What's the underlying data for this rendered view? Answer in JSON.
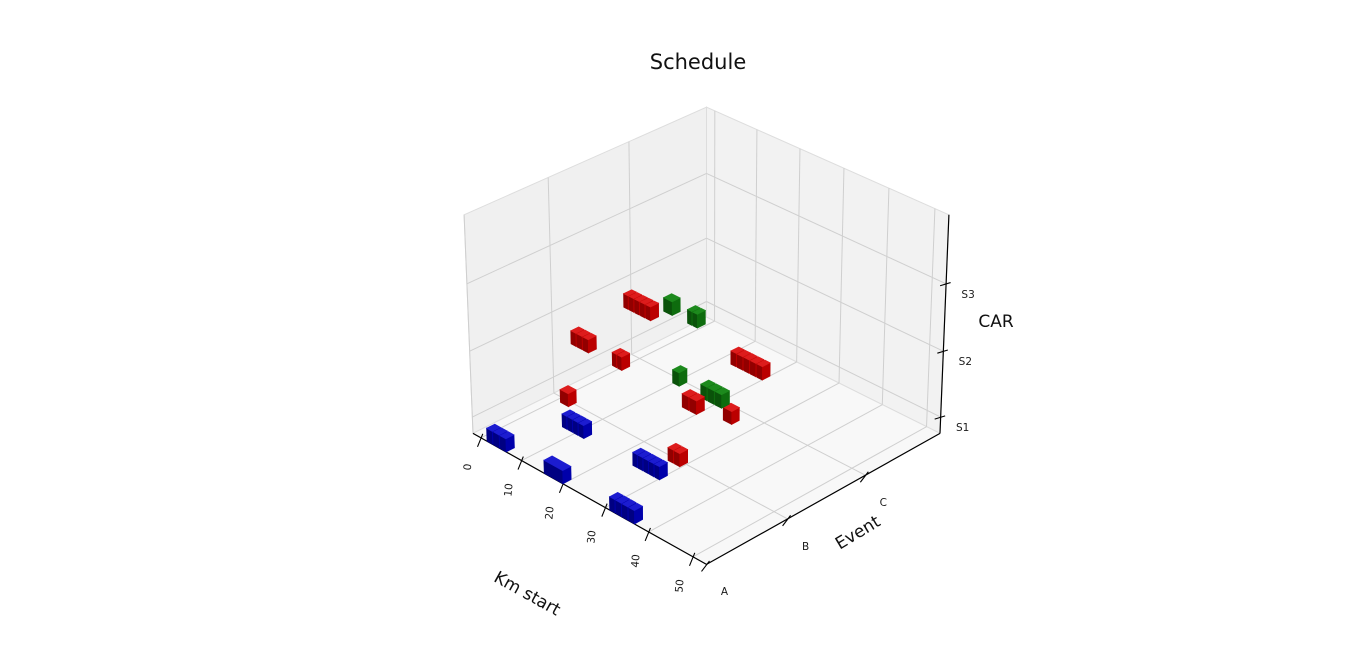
{
  "chart_data": {
    "type": "bar3d",
    "title": "Schedule",
    "x_axis": {
      "label": "Km start",
      "ticks": [
        "0",
        "10",
        "20",
        "30",
        "40",
        "50"
      ],
      "tick_values": [
        0,
        10,
        20,
        30,
        40,
        50
      ],
      "range": [
        -2,
        53
      ]
    },
    "y_axis": {
      "label": "Event",
      "ticks": [
        "A",
        "B",
        "C"
      ],
      "tick_values": [
        0,
        1,
        2
      ],
      "range": [
        0,
        3
      ]
    },
    "z_axis": {
      "label": "CAR",
      "ticks": [
        "S1",
        "S2",
        "S3"
      ],
      "tick_values": [
        0,
        1,
        2
      ],
      "range": [
        -0.25,
        3
      ]
    },
    "grid": true,
    "legend": "none",
    "colors": {
      "blue": {
        "top": "#1c1cd0",
        "side": "#0000aa",
        "front": "#000082"
      },
      "red": {
        "top": "#dd1c1c",
        "side": "#bb0000",
        "front": "#920000"
      },
      "green": {
        "top": "#1d8a1d",
        "side": "#0e6c0e",
        "front": "#0a520a"
      }
    },
    "pane_colors": {
      "floor": "#f8f8f8",
      "left_wall": "#f0f0f0",
      "right_wall": "#f2f2f2"
    },
    "grid_color": "#cfcfcf",
    "spine_color": "#000000",
    "tasks": [
      {
        "car": "S1",
        "event": "A",
        "km_from": 1.5,
        "km_to": 6.5,
        "segments": 3,
        "color": "blue",
        "y_pos": 0.05
      },
      {
        "car": "S1",
        "event": "A",
        "km_from": 15.5,
        "km_to": 20,
        "segments": 1,
        "color": "blue",
        "y_pos": 0.05
      },
      {
        "car": "S1",
        "event": "A",
        "km_from": 31,
        "km_to": 37,
        "segments": 4,
        "color": "blue",
        "y_pos": 0.05
      },
      {
        "car": "S1",
        "event": "B",
        "km_from": 7,
        "km_to": 12.5,
        "segments": 4,
        "color": "blue",
        "y_pos": 0.7
      },
      {
        "car": "S1",
        "event": "B",
        "km_from": 24,
        "km_to": 30.5,
        "segments": 5,
        "color": "blue",
        "y_pos": 0.7
      },
      {
        "car": "S1",
        "event": "B",
        "km_from": 1,
        "km_to": 3,
        "segments": 1,
        "color": "red",
        "y_pos": 0.98
      },
      {
        "car": "S1",
        "event": "B",
        "km_from": 27,
        "km_to": 30,
        "segments": 2,
        "color": "red",
        "y_pos": 0.98
      },
      {
        "car": "S1",
        "event": "C",
        "km_from": 24.5,
        "km_to": 26.5,
        "segments": 1,
        "color": "red",
        "y_pos": 1.82
      },
      {
        "car": "S2",
        "event": "B",
        "km_from": 4,
        "km_to": 8.5,
        "segments": 3,
        "color": "red",
        "y_pos": 0.98
      },
      {
        "car": "S2",
        "event": "B",
        "km_from": 14,
        "km_to": 16.5,
        "segments": 2,
        "color": "red",
        "y_pos": 0.98
      },
      {
        "car": "S2",
        "event": "B",
        "km_from": 31.5,
        "km_to": 35,
        "segments": 2,
        "color": "red",
        "y_pos": 0.92
      },
      {
        "car": "S2",
        "event": "C",
        "km_from": 27.5,
        "km_to": 35,
        "segments": 5,
        "color": "red",
        "y_pos": 1.75
      },
      {
        "car": "S3",
        "event": "B",
        "km_from": 17.5,
        "km_to": 24,
        "segments": 5,
        "color": "red",
        "y_pos": 0.95
      },
      {
        "car": "S2",
        "event": "B",
        "km_from": 25,
        "km_to": 26.5,
        "segments": 1,
        "color": "green",
        "y_pos": 1.15
      },
      {
        "car": "S2",
        "event": "B",
        "km_from": 31.5,
        "km_to": 36.5,
        "segments": 3,
        "color": "green",
        "y_pos": 1.15
      },
      {
        "car": "S3",
        "event": "B",
        "km_from": 23,
        "km_to": 25,
        "segments": 1,
        "color": "green",
        "y_pos": 1.15
      },
      {
        "car": "S3",
        "event": "B",
        "km_from": 28.5,
        "km_to": 31,
        "segments": 2,
        "color": "green",
        "y_pos": 1.15
      }
    ]
  }
}
